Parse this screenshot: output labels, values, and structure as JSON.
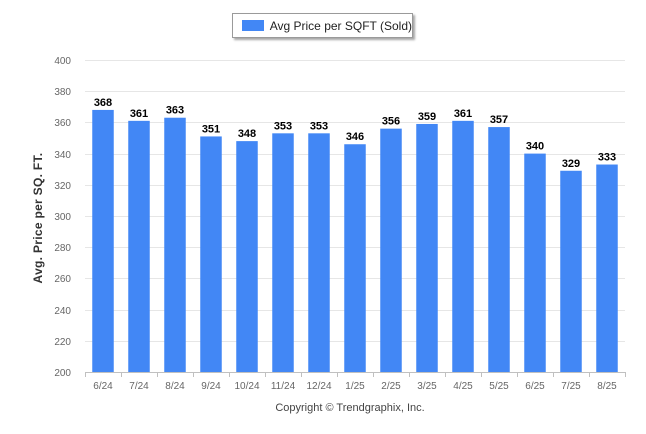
{
  "legend": {
    "label": "Avg Price per SQFT (Sold)"
  },
  "credit": "Copyright © Trendgraphix, Inc.",
  "colors": {
    "bar": "#4287f5",
    "grid": "#e6e6e6",
    "axis": "#c0c0c0",
    "tick_text": "#666666",
    "value_text": "#000000"
  },
  "chart_data": {
    "type": "bar",
    "title": "",
    "xlabel": "",
    "ylabel": "Avg. Price per SQ. FT.",
    "categories": [
      "6/24",
      "7/24",
      "8/24",
      "9/24",
      "10/24",
      "11/24",
      "12/24",
      "1/25",
      "2/25",
      "3/25",
      "4/25",
      "5/25",
      "6/25",
      "7/25",
      "8/25"
    ],
    "series": [
      {
        "name": "Avg Price per SQFT (Sold)",
        "values": [
          368,
          361,
          363,
          351,
          348,
          353,
          353,
          346,
          356,
          359,
          361,
          357,
          340,
          329,
          333
        ]
      }
    ],
    "ylim": [
      200,
      400
    ],
    "yticks": [
      200,
      220,
      240,
      260,
      280,
      300,
      320,
      340,
      360,
      380,
      400
    ],
    "grid": true,
    "data_labels": true,
    "legend_position": "top-center"
  }
}
